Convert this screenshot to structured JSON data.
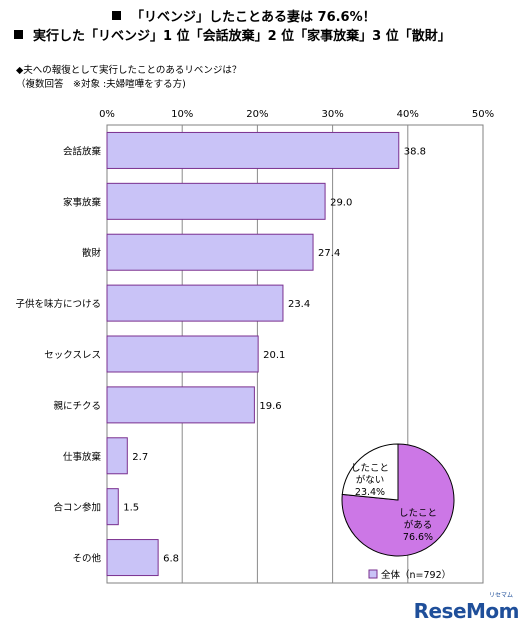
{
  "headlines": {
    "line1": "「リベンジ」したことある妻は 76.6%！",
    "line2": "実行した「リベンジ」1 位「会話放棄」2 位「家事放棄」3 位「散財」"
  },
  "question": "◆夫への報復として実行したことのあるリベンジは？",
  "subnote": "（複数回答　※対象 :夫婦喧嘩をする方)",
  "chart_data": {
    "type": "bar",
    "orientation": "horizontal",
    "categories": [
      "会話放棄",
      "家事放棄",
      "散財",
      "子供を味方につける",
      "セックスレス",
      "親にチクる",
      "仕事放棄",
      "合コン参加",
      "その他"
    ],
    "values": [
      38.8,
      29.0,
      27.4,
      23.4,
      20.1,
      19.6,
      2.7,
      1.5,
      6.8
    ],
    "value_labels": [
      "38.8",
      "29.0",
      "27.4",
      "23.4",
      "20.1",
      "19.6",
      "2.7",
      "1.5",
      "6.8"
    ],
    "xlim": [
      0,
      50
    ],
    "ticks": [
      0,
      10,
      20,
      30,
      40,
      50
    ],
    "tick_labels": [
      "0%",
      "10%",
      "20%",
      "30%",
      "40%",
      "50%"
    ],
    "bar_color": "#c9c3f7",
    "bar_edge": "#7a2f8f",
    "grid": true,
    "legend": {
      "label": "全体（n=792）",
      "placement": "bottom-right"
    }
  },
  "pie_data": {
    "type": "pie",
    "slices": [
      {
        "label_line1": "したこと",
        "label_line2": "がある",
        "value_text": "76.6%",
        "value": 76.6,
        "color": "#cc77e6"
      },
      {
        "label_line1": "したこと",
        "label_line2": "がない",
        "value_text": "23.4%",
        "value": 23.4,
        "color": "#ffffff"
      }
    ]
  },
  "logo": {
    "text": "ReseMom",
    "sub": "リセマム"
  }
}
